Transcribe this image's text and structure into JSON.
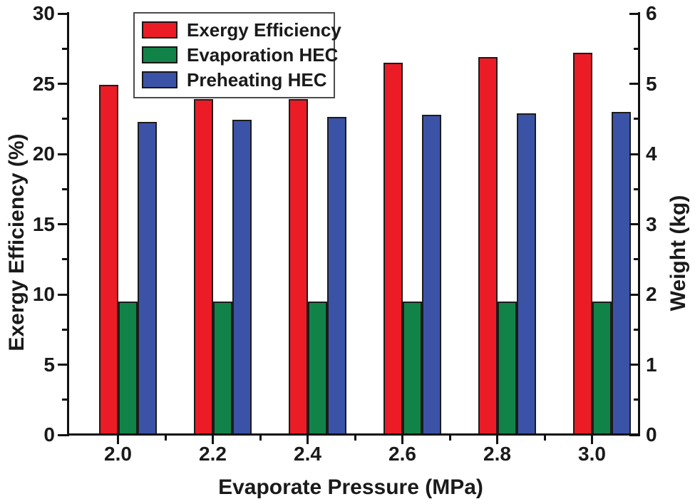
{
  "figure": {
    "background": "#ffffff",
    "text_color": "#1a1a1a",
    "axis_color": "#111111"
  },
  "chart_data": {
    "type": "bar",
    "title": "",
    "categories": [
      "2.0",
      "2.2",
      "2.4",
      "2.6",
      "2.8",
      "3.0"
    ],
    "xlabel": "Evaporate Pressure (MPa)",
    "ylabel_left": "Exergy Efficiency (%)",
    "ylabel_right": "Weight (kg)",
    "y_left_axis": {
      "min": 0,
      "max": 30,
      "major_step": 5,
      "minor_step": 2.5,
      "tick_labels": [
        "0",
        "5",
        "10",
        "15",
        "20",
        "25",
        "30"
      ]
    },
    "y_right_axis": {
      "min": 0,
      "max": 6,
      "major_step": 1,
      "minor_step": 0.5,
      "tick_labels": [
        "0",
        "1",
        "2",
        "3",
        "4",
        "5",
        "6"
      ]
    },
    "series": [
      {
        "name": "Exergy Efficiency",
        "axis": "left",
        "unit": "%",
        "color": "#EB1C26",
        "values": [
          24.9,
          23.9,
          23.9,
          26.5,
          26.9,
          27.2
        ]
      },
      {
        "name": "Evaporation HEC",
        "axis": "right",
        "unit": "kg",
        "color": "#128348",
        "values": [
          1.9,
          1.9,
          1.9,
          1.9,
          1.9,
          1.9
        ]
      },
      {
        "name": "Preheating HEC",
        "axis": "right",
        "unit": "kg",
        "color": "#3B53A7",
        "values": [
          4.46,
          4.49,
          4.53,
          4.56,
          4.58,
          4.6
        ]
      }
    ],
    "legend_position": "inside-top-left",
    "grid": false,
    "bar_outline_color": "#1c1c1c"
  }
}
